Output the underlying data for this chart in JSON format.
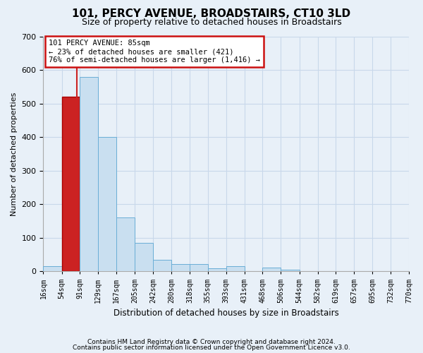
{
  "title": "101, PERCY AVENUE, BROADSTAIRS, CT10 3LD",
  "subtitle": "Size of property relative to detached houses in Broadstairs",
  "xlabel": "Distribution of detached houses by size in Broadstairs",
  "ylabel": "Number of detached properties",
  "footer_line1": "Contains HM Land Registry data © Crown copyright and database right 2024.",
  "footer_line2": "Contains public sector information licensed under the Open Government Licence v3.0.",
  "annotation_title": "101 PERCY AVENUE: 85sqm",
  "annotation_line2": "← 23% of detached houses are smaller (421)",
  "annotation_line3": "76% of semi-detached houses are larger (1,416) →",
  "property_size_sqm": 85,
  "bar_edges": [
    16,
    54,
    91,
    129,
    167,
    205,
    242,
    280,
    318,
    355,
    393,
    431,
    468,
    506,
    544,
    582,
    619,
    657,
    695,
    732,
    770
  ],
  "bar_heights": [
    15,
    520,
    580,
    400,
    160,
    85,
    35,
    22,
    22,
    10,
    15,
    0,
    12,
    5,
    0,
    0,
    0,
    0,
    0,
    0
  ],
  "bar_color": "#c9dff0",
  "bar_edge_color": "#6aaed6",
  "highlight_color": "#cc2222",
  "highlight_edge_color": "#aa0000",
  "annotation_box_facecolor": "#ffffff",
  "annotation_box_edgecolor": "#cc1111",
  "grid_color": "#c8d8ea",
  "background_color": "#e8f0f8",
  "plot_bg_color": "#e8f0f8",
  "ylim": [
    0,
    700
  ],
  "yticks": [
    0,
    100,
    200,
    300,
    400,
    500,
    600,
    700
  ],
  "title_fontsize": 11,
  "subtitle_fontsize": 9,
  "ylabel_fontsize": 8,
  "xlabel_fontsize": 8.5,
  "tick_fontsize": 7,
  "footer_fontsize": 6.5,
  "annotation_fontsize": 7.5
}
